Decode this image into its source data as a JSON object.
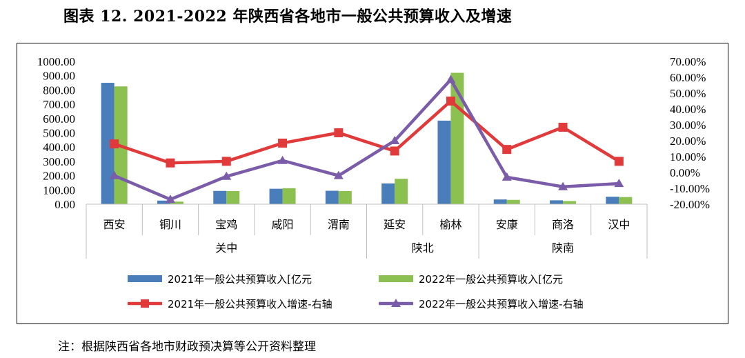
{
  "title": "图表 12.    2021-2022 年陕西省各地市一般公共预算收入及增速",
  "note": "注：根据陕西省各地市财政预决算等公开资料整理",
  "chart_data": {
    "type": "bar",
    "categories": [
      "西安",
      "铜川",
      "宝鸡",
      "咸阳",
      "渭南",
      "延安",
      "榆林",
      "安康",
      "商洛",
      "汉中"
    ],
    "groups": [
      {
        "name": "关中",
        "count": 5
      },
      {
        "name": "陕北",
        "count": 2
      },
      {
        "name": "陕南",
        "count": 3
      }
    ],
    "series": [
      {
        "name": "2021年一般公共预算收入[亿元",
        "kind": "bar",
        "axis": "left",
        "color": "#4a7ebb",
        "values": [
          850,
          25,
          93,
          108,
          94,
          145,
          585,
          33,
          27,
          52
        ]
      },
      {
        "name": "2022年一般公共预算收入[亿元",
        "kind": "bar",
        "axis": "left",
        "color": "#8cc152",
        "values": [
          825,
          18,
          92,
          112,
          92,
          178,
          920,
          30,
          22,
          50
        ]
      },
      {
        "name": "2021年一般公共预算收入增速-右轴",
        "kind": "line",
        "axis": "right",
        "color": "#e03a3a",
        "values": [
          18.0,
          6.0,
          7.0,
          18.5,
          25.0,
          13.5,
          45.0,
          14.5,
          28.5,
          7.0
        ]
      },
      {
        "name": "2022年一般公共预算收入增速-右轴",
        "kind": "line",
        "axis": "right",
        "color": "#7b5ca8",
        "values": [
          -2.0,
          -17.0,
          -2.5,
          7.5,
          -2.0,
          20.0,
          58.5,
          -3.0,
          -9.0,
          -7.0
        ]
      }
    ],
    "y_left": {
      "min": 0,
      "max": 1000,
      "step": 100,
      "tick_labels": [
        "0.00",
        "100.00",
        "200.00",
        "300.00",
        "400.00",
        "500.00",
        "600.00",
        "700.00",
        "800.00",
        "900.00",
        "1000.00"
      ]
    },
    "y_right": {
      "min": -20,
      "max": 70,
      "step": 10,
      "tick_labels": [
        "-20.00%",
        "-10.00%",
        "0.00%",
        "10.00%",
        "20.00%",
        "30.00%",
        "40.00%",
        "50.00%",
        "60.00%",
        "70.00%"
      ]
    },
    "legend_position": "bottom",
    "grid": false
  }
}
